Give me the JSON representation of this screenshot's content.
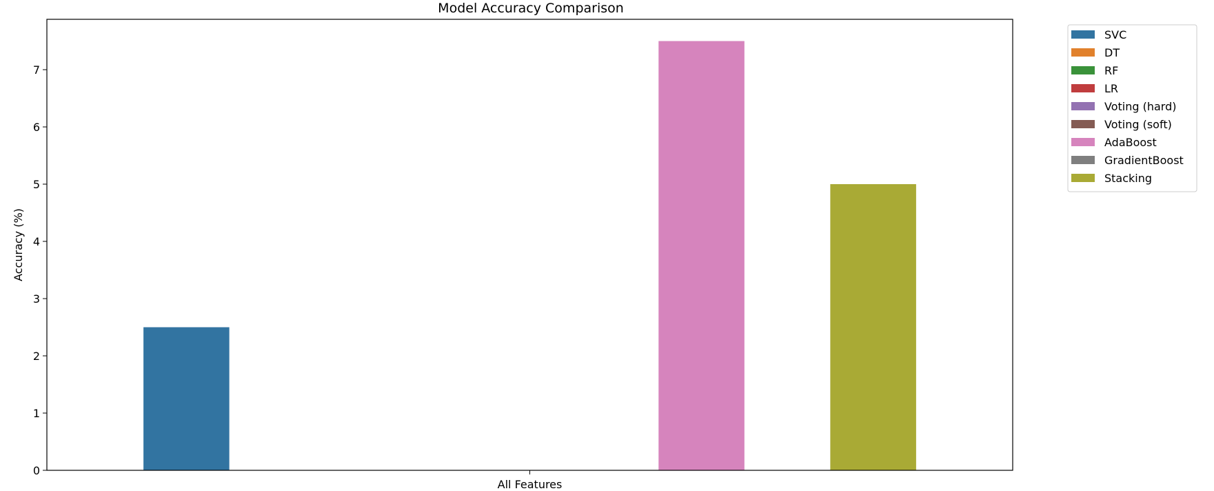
{
  "chart_data": {
    "type": "bar",
    "title": "Model Accuracy Comparison",
    "xlabel": "",
    "ylabel": "Accuracy (%)",
    "categories": [
      "All Features"
    ],
    "ylim": [
      0,
      7.88
    ],
    "yticks": [
      0,
      1,
      2,
      3,
      4,
      5,
      6,
      7
    ],
    "grid": false,
    "legend_position": "outside-right",
    "series": [
      {
        "name": "SVC",
        "color": "#3274a1",
        "values": [
          2.5
        ]
      },
      {
        "name": "DT",
        "color": "#e1812c",
        "values": [
          0
        ]
      },
      {
        "name": "RF",
        "color": "#3a923a",
        "values": [
          0
        ]
      },
      {
        "name": "LR",
        "color": "#c03d3e",
        "values": [
          0
        ]
      },
      {
        "name": "Voting (hard)",
        "color": "#9372b2",
        "values": [
          0
        ]
      },
      {
        "name": "Voting (soft)",
        "color": "#845b53",
        "values": [
          0
        ]
      },
      {
        "name": "AdaBoost",
        "color": "#d684bd",
        "values": [
          7.5
        ]
      },
      {
        "name": "GradientBoost",
        "color": "#7f7f7f",
        "values": [
          0
        ]
      },
      {
        "name": "Stacking",
        "color": "#a9aa35",
        "values": [
          5.0
        ]
      }
    ]
  }
}
